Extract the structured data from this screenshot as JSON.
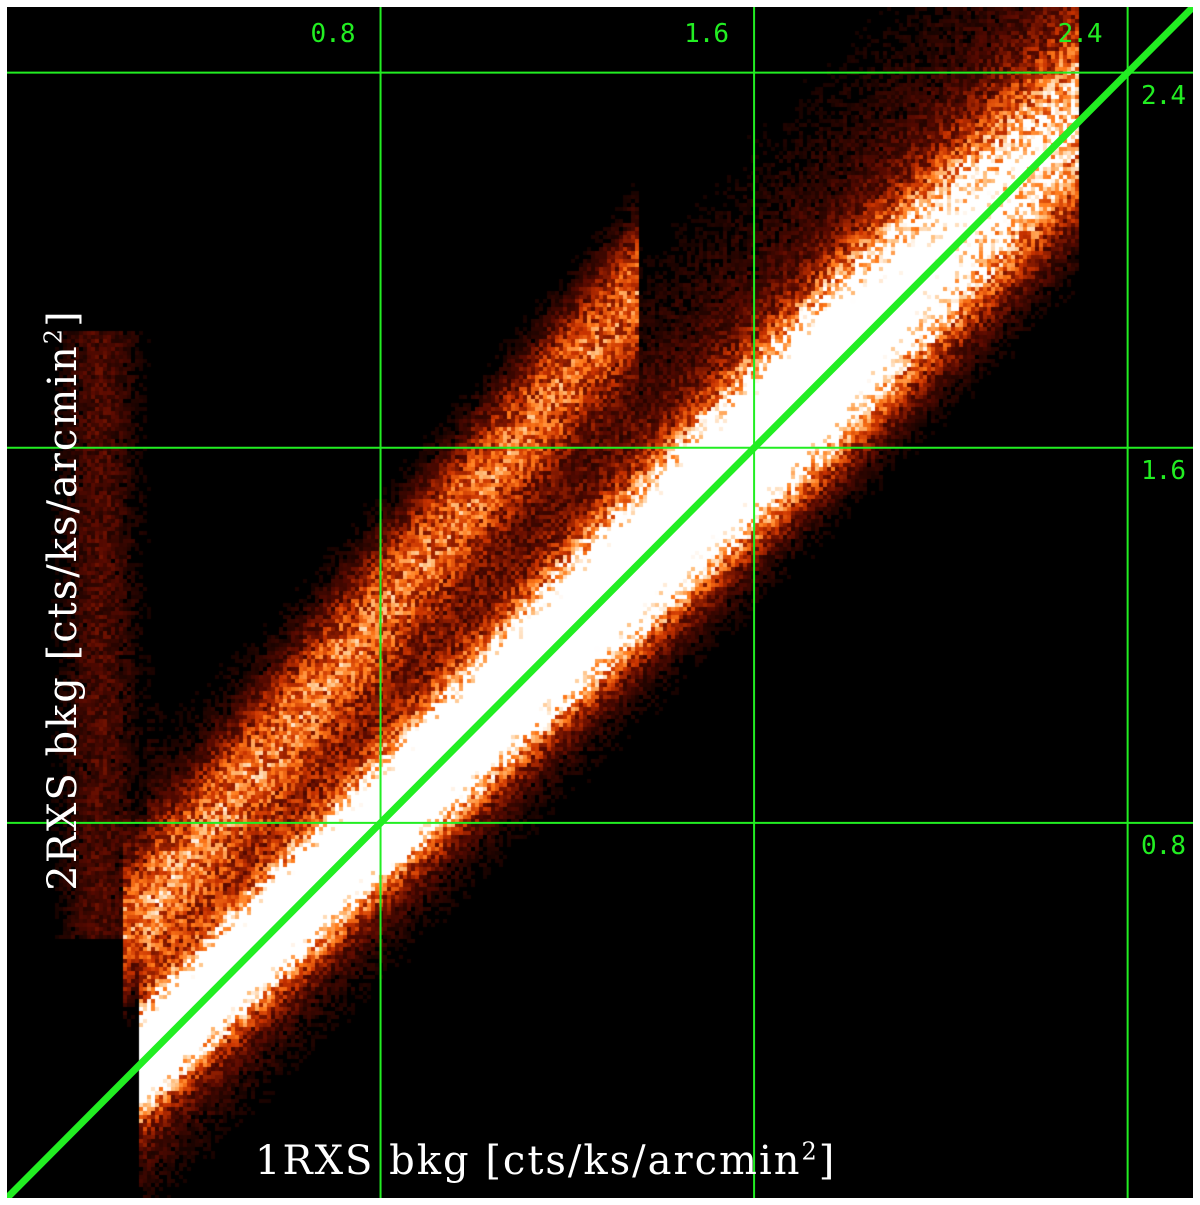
{
  "chart_data": {
    "type": "heatmap",
    "title": "",
    "xlabel": {
      "text": "1RXS bkg [cts/ks/arcmin",
      "sup": "2",
      "close": "]"
    },
    "ylabel": {
      "text": "2RXS bkg [cts/ks/arcmin",
      "sup": "2",
      "close": "]"
    },
    "xlim": [
      0.0,
      2.54
    ],
    "ylim": [
      0.0,
      2.54
    ],
    "grid": true,
    "x_ticks": [
      {
        "value": 0.8,
        "label": "0.8"
      },
      {
        "value": 1.6,
        "label": "1.6"
      },
      {
        "value": 2.4,
        "label": "2.4"
      }
    ],
    "y_ticks": [
      {
        "value": 0.8,
        "label": "0.8"
      },
      {
        "value": 1.6,
        "label": "1.6"
      },
      {
        "value": 2.4,
        "label": "2.4"
      }
    ],
    "reference_line": {
      "label": "y = x",
      "from": [
        0.0,
        0.0
      ],
      "to": [
        2.54,
        2.54
      ]
    },
    "density_features": [
      {
        "name": "main ridge",
        "along": "y = x",
        "x_range": [
          0.35,
          1.75
        ],
        "peak": "saturated"
      },
      {
        "name": "upper branch",
        "along": "y ≈ 1.25x + 0.25",
        "x_range": [
          0.3,
          1.3
        ],
        "peak": "medium"
      }
    ],
    "colormap": [
      "#000000",
      "#5a0a00",
      "#c83200",
      "#ff7a1a",
      "#ffc080",
      "#ffffff"
    ]
  },
  "colors": {
    "background": "#000000",
    "grid": "#22ee22",
    "tick_labels": "#22ee22",
    "axis_labels": "#ffffff"
  }
}
